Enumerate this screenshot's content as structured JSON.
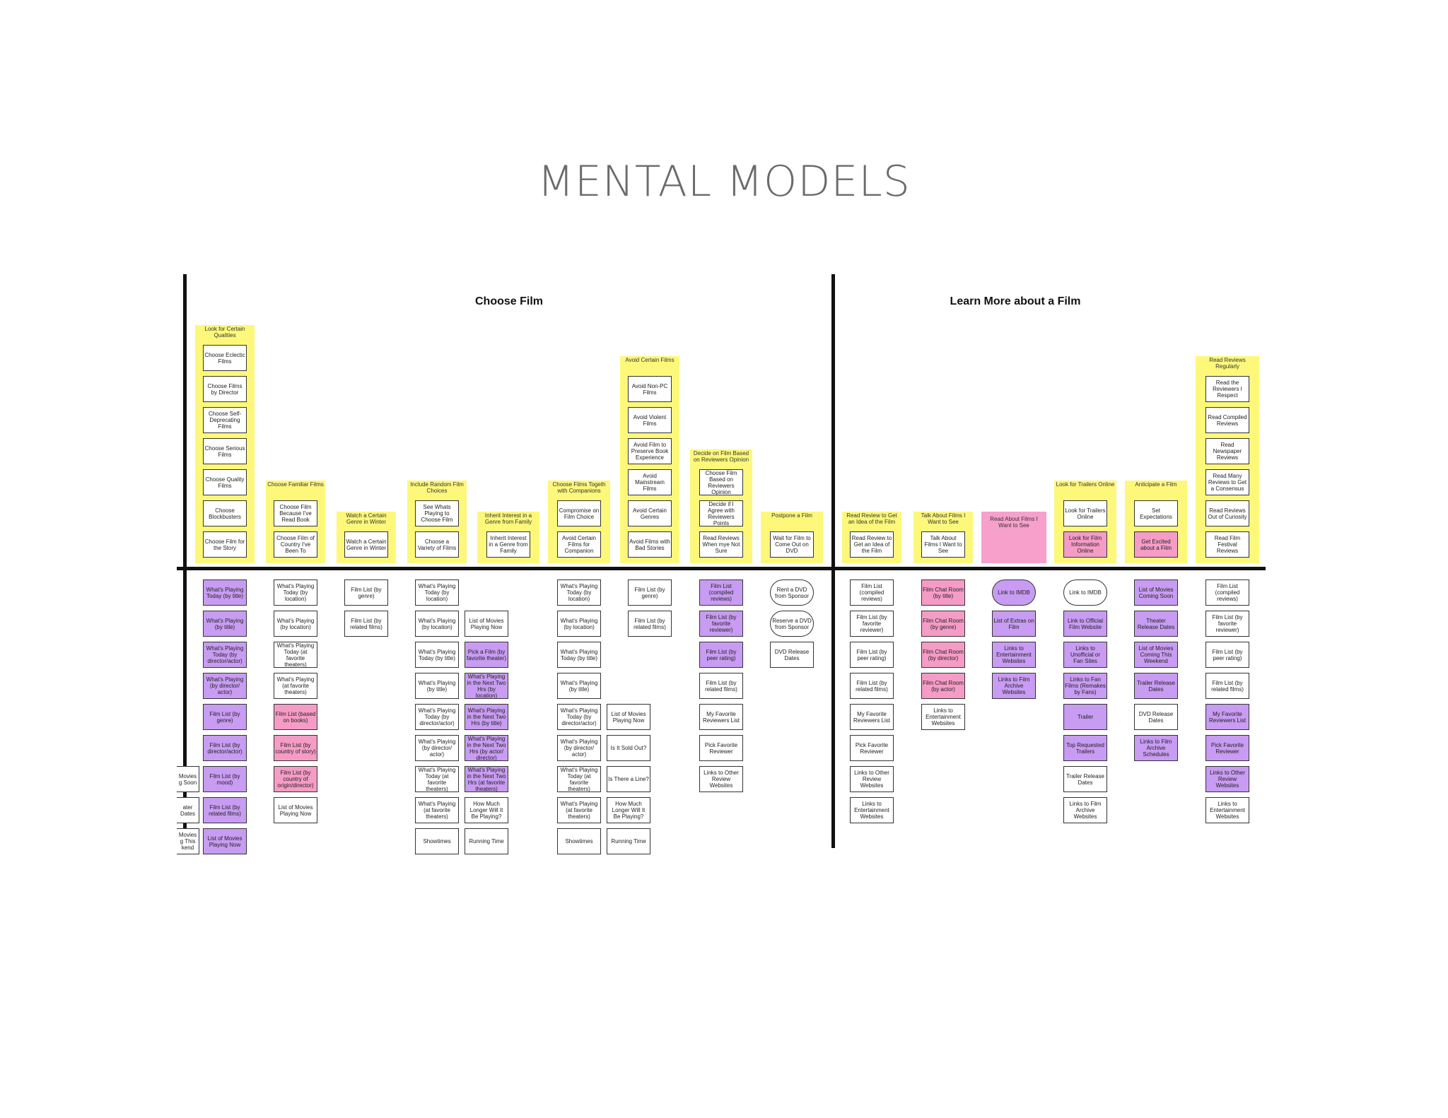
{
  "title": "MENTAL MODELS",
  "sections": [
    "Choose Film",
    "Learn More about a Film"
  ],
  "towers": [
    {
      "label": "Look for Certain Qualities",
      "items": [
        "Choose Eclectic Films",
        "Choose Films by Director",
        "Choose Self-Deprecating Films",
        "Choose Serious Films",
        "Choose Quality Films",
        "Choose Blockbusters",
        "Choose Film for the Story"
      ]
    },
    {
      "label": "Choose Familiar Films",
      "items": [
        "Choose Film Because I've Read Book",
        "Choose Film of Country I've Been To"
      ]
    },
    {
      "label": "Watch a Certain Genre in Winter",
      "items": [
        "Watch a Certain Genre in Winter"
      ]
    },
    {
      "label": "Include Random Film Choices",
      "items": [
        "See Whats Playing to Choose Film",
        "Choose a Variety of Films"
      ]
    },
    {
      "label": "Inherit Interest in a Genre from Family",
      "items": [
        "Inherit Interest in a Genre from Family"
      ]
    },
    {
      "label": "Choose Films Togeth with Companions",
      "items": [
        "Compromise on Film Choice",
        "Avoid Certain Films for Companion"
      ]
    },
    {
      "label": "Avoid Certain Films",
      "items": [
        "Avoid Non-PC Films",
        "Avoid Violent Films",
        "Avoid Film to Preserve Book Experience",
        "Avoid Mainstream Films",
        "Avoid Certain Genres",
        "Avoid Films with Bad Stories"
      ]
    },
    {
      "label": "Decide on Film Based on Reviewers Opinion",
      "items": [
        "Choose Film Based on Reviewers Opinion",
        "Decide if I Agree with Reviewers Points",
        "Read Reviews When mye Not Sure"
      ]
    },
    {
      "label": "Postpone a Film",
      "items": [
        "Wait for Film to Come Out on DVD"
      ]
    },
    {
      "label": "Read Review to Get an Idea of the Film",
      "items": [
        "Read Review to Get an Idea of the Film"
      ]
    },
    {
      "label": "Talk About Films I Want to See",
      "items": [
        "Talk About Films I Want to See"
      ]
    },
    {
      "label": "Read About Films I Want to See",
      "items": []
    },
    {
      "label": "Look for Trailers Online",
      "items": [
        "Look for Trailers Online",
        "Look for Film Information Online"
      ]
    },
    {
      "label": "Anticipate a Film",
      "items": [
        "Set Expectations",
        "Get Excited about a Film"
      ]
    },
    {
      "label": "Read Reviews Regularly",
      "items": [
        "Read the Reviewers I Respect",
        "Read Compiled Reviews",
        "Read Newspaper Reviews",
        "Read Many Reviews to Get a Consensus",
        "Read Reviews Out of Curiosity",
        "Read Film Festival Reviews"
      ]
    }
  ],
  "supports": {
    "cut_left": [
      "Movies g Soon",
      "ater Dates",
      "Movies g This kend"
    ],
    "c1": [
      "What's Playing Today (by title)",
      "What's Playing (by title)",
      "What's Playing Today (by director/actor)",
      "What's Playing (by director/ actor)",
      "Film List (by genre)",
      "Film List (by director/actor)",
      "Film List (by mood)",
      "Film List (by related films)",
      "List of Movies Playing Now"
    ],
    "c2": [
      "What's Playing Today (by location)",
      "What's Playing (by location)",
      "What's Playing Today (at favorite theaters)",
      "What's Playing (at favorite theaters)",
      "Film List (based on books)",
      "Film List (by country of story)",
      "Film List (by country of origin/director)",
      "List of Movies Playing Now"
    ],
    "c3": [
      "Film List (by genre)",
      "Film List (by related films)"
    ],
    "c4a": [
      "What's Playing Today (by location)",
      "What's Playing (by location)",
      "What's Playing Today (by title)",
      "What's Playing (by title)",
      "What's Playing Today (by director/actor)",
      "What's Playing (by director/ actor)",
      "What's Playing Today (at favorite theaters)",
      "What's Playing (at favorite theaters)",
      "Showtimes"
    ],
    "c4b": [
      "List of Movies Playing Now",
      "Pick a Film (by favorite theater)",
      "What's Playing in the Next Two Hrs (by location)",
      "What's Playing in the Next Two Hrs (by title)",
      "What's Playing in the Next Two Hrs (by actor/ director)",
      "What's Playing in the Next Two Hrs (at favorite theaters)",
      "How Much Longer Will It Be Playing?",
      "Running Time"
    ],
    "c6a": [
      "What's Playing Today (by location)",
      "What's Playing (by location)",
      "What's Playing Today (by title)",
      "What's Playing (by title)",
      "What's Playing Today (by director/actor)",
      "What's Playing (by director/ actor)",
      "What's Playing Today (at favorite theaters)",
      "What's Playing (at favorite theaters)",
      "Showtimes"
    ],
    "c6b": [
      "List of Movies Playing Now",
      "Is It Sold Out?",
      "Is There a Line?",
      "How Much Longer Will It Be Playing?",
      "Running Time"
    ],
    "c7": [
      "Film List (by genre)",
      "Film List (by related films)"
    ],
    "c8": [
      "Film List (compiled reviews)",
      "Film List (by favorite reviewer)",
      "Film List (by peer rating)",
      "Film List (by related films)",
      "My Favorite Reviewers List",
      "Pick Favorite Reviewer",
      "Links to Other Review Websites"
    ],
    "c9": [
      "Rent a DVD from Sponsor",
      "Reserve a DVD from Sponsor",
      "DVD Release Dates"
    ],
    "c10": [
      "Film List (compiled reviews)",
      "Film List (by favorite reviewer)",
      "Film List (by peer rating)",
      "Film List (by related films)",
      "My Favorite Reviewers List",
      "Pick Favorite Reviewer",
      "Links to Other Review Websites",
      "Links to Entertainment Websites"
    ],
    "c11": [
      "Film Chat Room (by title)",
      "Film Chat Room (by genre)",
      "Film Chat Room (by director)",
      "Film Chat Room (by actor)",
      "Links to Entertainment Websites"
    ],
    "c12": [
      "Link to IMDB",
      "List of Extras on Film",
      "Links to Entertainment Websites",
      "Links to Film Archive Websites"
    ],
    "c13": [
      "Link to IMDB",
      "Link to Official Film Website",
      "Links to Unofficial or Fan Sites",
      "Links to Fan Films (Remakes by Fans)",
      "Trailer",
      "Top Requested Trailers",
      "Trailer Release Dates",
      "Links to Film Archive Websites"
    ],
    "c14": [
      "List of Movies Coming Soon",
      "Theater Release Dates",
      "List of Movies Coming This Weekend",
      "Trailer Release Dates",
      "DVD Release Dates",
      "Links to Film Archive Schedules"
    ],
    "c15": [
      "Film List (compiled reviews)",
      "Film List (by favorite reviewer)",
      "Film List (by peer rating)",
      "Film List (by related films)",
      "My Favorite Reviewers List",
      "Pick Favorite Reviewer",
      "Links to Other Review Websites",
      "Links to Entertainment Websites"
    ]
  },
  "colors": {
    "tower": "#fdf87a",
    "purple": "#c89cf2",
    "pink": "#f59cc6",
    "line": "#111111"
  }
}
